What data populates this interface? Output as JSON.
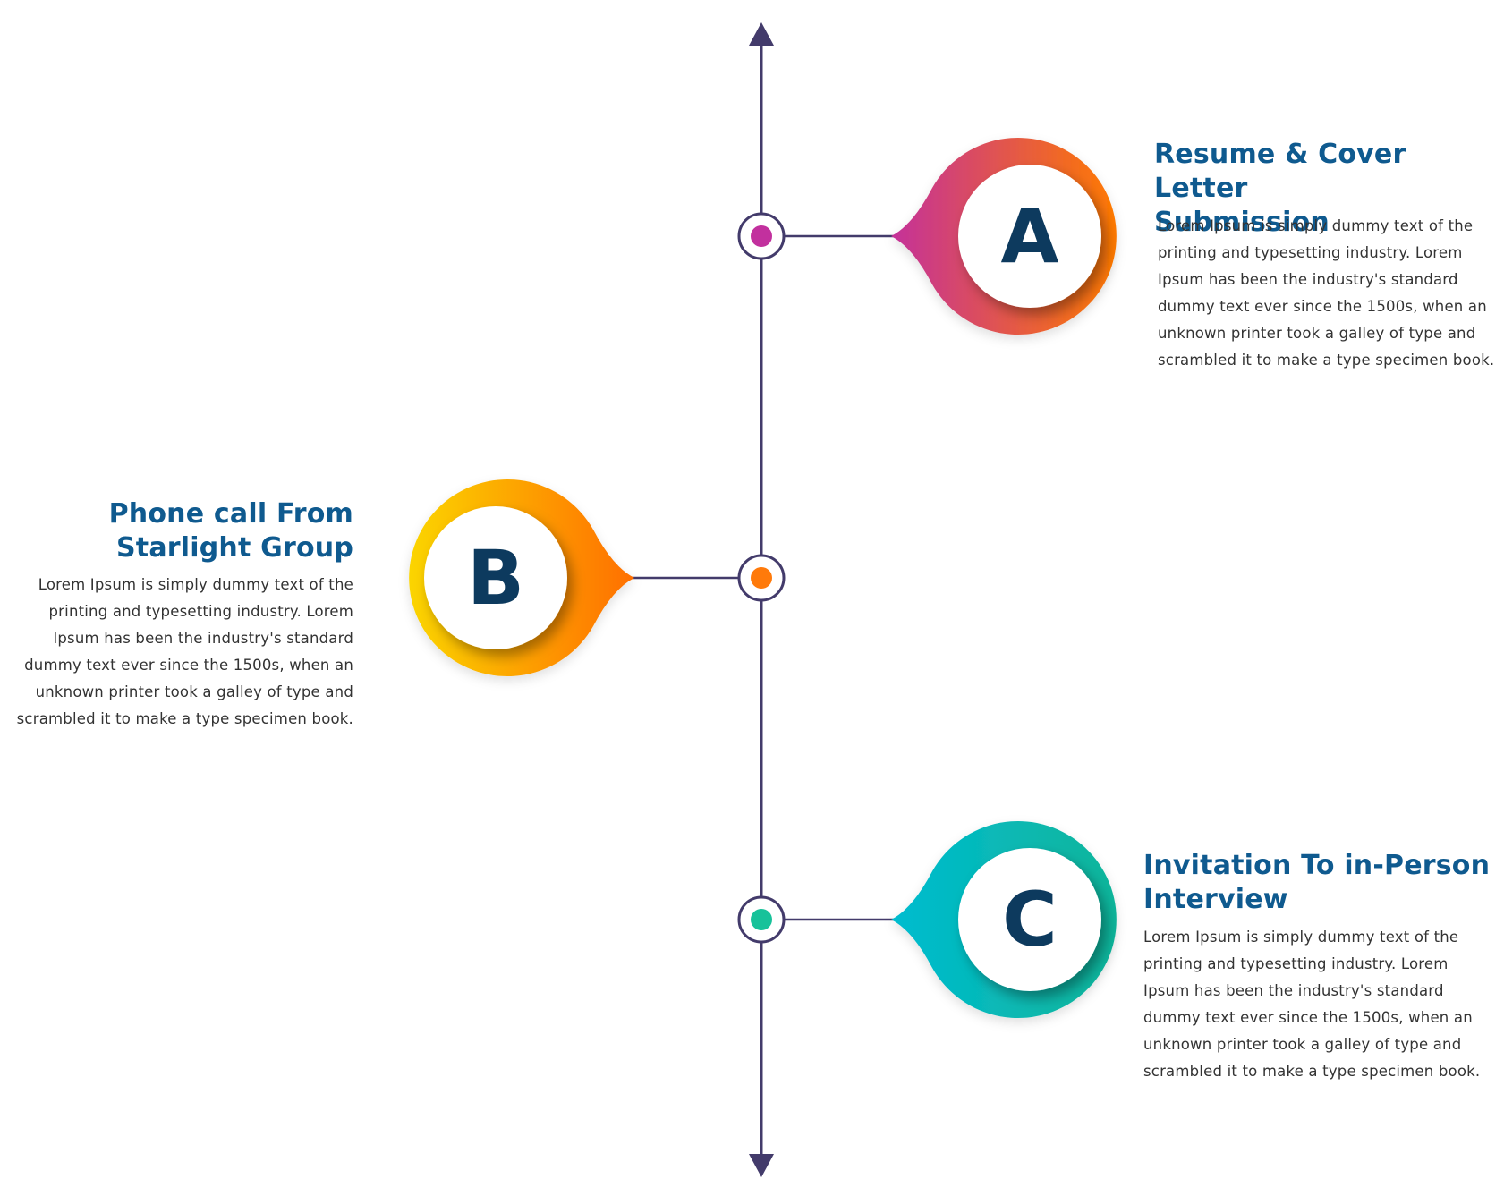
{
  "colors": {
    "axis": "#433b6b",
    "title": "#0f5a8f",
    "letter": "#0d3a5e",
    "body_text": "#333333"
  },
  "steps": [
    {
      "letter": "A",
      "title_line1": "Resume & Cover Letter",
      "title_line2": "Submission",
      "body": "Lorem Ipsum is simply dummy text of the printing and typesetting industry. Lorem Ipsum has been the industry's standard dummy text ever since the 1500s, when an unknown printer took a galley of type and scrambled it to make a type specimen book.",
      "side": "right",
      "gradient": [
        "#c4319a",
        "#ff7a00"
      ],
      "dot_color": "#c2309e"
    },
    {
      "letter": "B",
      "title_line1": "Phone call From",
      "title_line2": "Starlight Group",
      "body": "Lorem Ipsum is simply dummy text of the printing and typesetting industry. Lorem Ipsum has been the industry's standard dummy text ever since the 1500s, when an unknown printer took a galley of type and scrambled it to make a type specimen book.",
      "side": "left",
      "gradient": [
        "#fbd500",
        "#ff6f00"
      ],
      "dot_color": "#ff7a0a"
    },
    {
      "letter": "C",
      "title_line1": "Invitation To in-Person",
      "title_line2": "Interview",
      "body": "Lorem Ipsum is simply dummy text of the printing and typesetting industry. Lorem Ipsum has been the industry's standard dummy text ever since the 1500s, when an unknown printer took a galley of type and scrambled it to make a type specimen book.",
      "side": "right",
      "gradient": [
        "#00bcd0",
        "#10b59a"
      ],
      "dot_color": "#17c29a"
    }
  ]
}
